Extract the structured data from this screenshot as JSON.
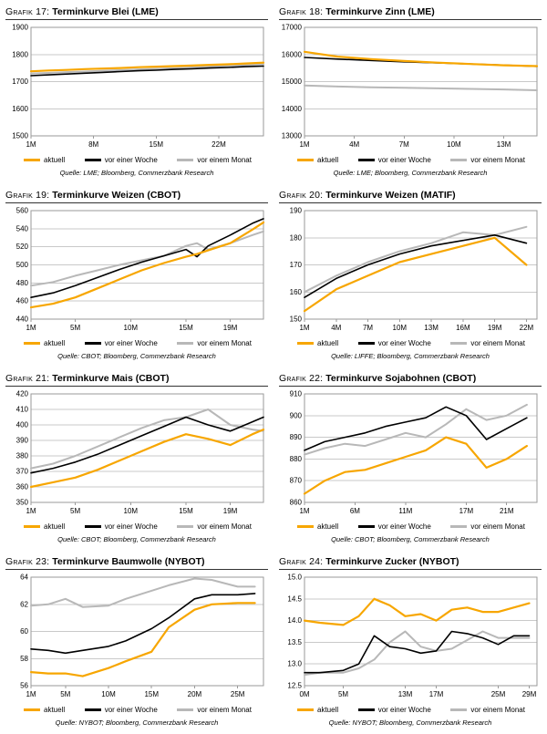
{
  "page": {
    "legend_labels": [
      "aktuell",
      "vor einer Woche",
      "vor einem Monat"
    ],
    "colors": {
      "aktuell": "#f7a600",
      "week": "#000000",
      "month": "#b8b8b8",
      "grid": "#c9c9c9"
    }
  },
  "chart_data": [
    {
      "type": "line",
      "grafik": "Grafik 17:",
      "title": "Terminkurve Blei (LME)",
      "source": "Quelle: LME; Bloomberg, Commerzbank Research",
      "ylim": [
        1500,
        1900
      ],
      "yticks": [
        1500,
        1600,
        1700,
        1800,
        1900
      ],
      "ytick_labels": [
        "1500",
        "1600",
        "1700",
        "1800",
        "1900"
      ],
      "xlim": [
        1,
        27
      ],
      "xticks": [
        1,
        8,
        15,
        22
      ],
      "xtick_labels": [
        "1M",
        "8M",
        "15M",
        "22M"
      ],
      "x": [
        1,
        3,
        5,
        7,
        9,
        11,
        13,
        15,
        17,
        19,
        21,
        23,
        25,
        27
      ],
      "series": [
        {
          "name": "aktuell",
          "color": "#f7a600",
          "values": [
            1738,
            1741,
            1743,
            1746,
            1748,
            1750,
            1753,
            1755,
            1757,
            1759,
            1762,
            1764,
            1767,
            1770
          ]
        },
        {
          "name": "vor einer Woche",
          "color": "#000000",
          "values": [
            1722,
            1725,
            1728,
            1731,
            1734,
            1737,
            1740,
            1742,
            1745,
            1747,
            1750,
            1752,
            1755,
            1757
          ]
        },
        {
          "name": "vor einem Monat",
          "color": "#b8b8b8",
          "values": [
            1730,
            1732,
            1735,
            1737,
            1740,
            1742,
            1745,
            1747,
            1749,
            1752,
            1755,
            1758,
            1761,
            1764
          ]
        }
      ]
    },
    {
      "type": "line",
      "grafik": "Grafik 18:",
      "title": "Terminkurve Zinn (LME)",
      "source": "Quelle: LME; Bloomberg, Commerzbank Research",
      "ylim": [
        13000,
        17000
      ],
      "yticks": [
        13000,
        14000,
        15000,
        16000,
        17000
      ],
      "ytick_labels": [
        "13000",
        "14000",
        "15000",
        "16000",
        "17000"
      ],
      "xlim": [
        1,
        15
      ],
      "xticks": [
        1,
        4,
        7,
        10,
        13
      ],
      "xtick_labels": [
        "1M",
        "4M",
        "7M",
        "10M",
        "13M"
      ],
      "x": [
        1,
        3,
        5,
        7,
        9,
        11,
        13,
        15
      ],
      "series": [
        {
          "name": "aktuell",
          "color": "#f7a600",
          "values": [
            16100,
            15920,
            15830,
            15760,
            15700,
            15650,
            15600,
            15570
          ]
        },
        {
          "name": "vor einer Woche",
          "color": "#000000",
          "values": [
            15890,
            15830,
            15780,
            15730,
            15690,
            15650,
            15610,
            15560
          ]
        },
        {
          "name": "vor einem Monat",
          "color": "#b8b8b8",
          "values": [
            14860,
            14820,
            14790,
            14770,
            14750,
            14730,
            14710,
            14680
          ]
        }
      ]
    },
    {
      "type": "line",
      "grafik": "Grafik 19:",
      "title": "Terminkurve Weizen (CBOT)",
      "source": "Quelle: CBOT; Bloomberg, Commerzbank Research",
      "ylim": [
        440,
        560
      ],
      "yticks": [
        440,
        460,
        480,
        500,
        520,
        540,
        560
      ],
      "ytick_labels": [
        "440",
        "460",
        "480",
        "500",
        "520",
        "540",
        "560"
      ],
      "xlim": [
        1,
        22
      ],
      "xticks": [
        1,
        5,
        10,
        15,
        19
      ],
      "xtick_labels": [
        "1M",
        "5M",
        "10M",
        "15M",
        "19M"
      ],
      "x": [
        1,
        3,
        5,
        7,
        9,
        11,
        13,
        15,
        16,
        17,
        19,
        21,
        22
      ],
      "series": [
        {
          "name": "aktuell",
          "color": "#f7a600",
          "values": [
            453,
            457,
            464,
            474,
            484,
            494,
            502,
            509,
            512,
            516,
            524,
            539,
            547
          ]
        },
        {
          "name": "vor einer Woche",
          "color": "#000000",
          "values": [
            464,
            469,
            477,
            486,
            495,
            503,
            510,
            517,
            509,
            521,
            533,
            546,
            551
          ]
        },
        {
          "name": "vor einem Monat",
          "color": "#b8b8b8",
          "values": [
            477,
            481,
            488,
            494,
            500,
            505,
            510,
            521,
            524,
            517,
            524,
            533,
            537
          ]
        }
      ]
    },
    {
      "type": "line",
      "grafik": "Grafik 20:",
      "title": "Terminkurve Weizen (MATIF)",
      "source": "Quelle: LIFFE; Bloomberg, Commerzbank Research",
      "ylim": [
        150,
        190
      ],
      "yticks": [
        150,
        160,
        170,
        180,
        190
      ],
      "ytick_labels": [
        "150",
        "160",
        "170",
        "180",
        "190"
      ],
      "xlim": [
        1,
        23
      ],
      "xticks": [
        1,
        4,
        7,
        10,
        13,
        16,
        19,
        22
      ],
      "xtick_labels": [
        "1M",
        "4M",
        "7M",
        "10M",
        "13M",
        "16M",
        "19M",
        "22M"
      ],
      "x": [
        1,
        4,
        7,
        10,
        13,
        16,
        19,
        22
      ],
      "series": [
        {
          "name": "aktuell",
          "color": "#f7a600",
          "values": [
            153,
            161,
            166,
            171,
            174,
            177,
            180,
            170
          ]
        },
        {
          "name": "vor einer Woche",
          "color": "#000000",
          "values": [
            158,
            165,
            170,
            174,
            177,
            179,
            181,
            178
          ]
        },
        {
          "name": "vor einem Monat",
          "color": "#b8b8b8",
          "values": [
            160,
            166,
            171,
            175,
            178,
            182,
            181,
            184
          ]
        }
      ]
    },
    {
      "type": "line",
      "grafik": "Grafik 21:",
      "title": "Terminkurve Mais (CBOT)",
      "source": "Quelle: CBOT; Bloomberg, Commerzbank Research",
      "ylim": [
        350,
        420
      ],
      "yticks": [
        350,
        360,
        370,
        380,
        390,
        400,
        410,
        420
      ],
      "ytick_labels": [
        "350",
        "360",
        "370",
        "380",
        "390",
        "400",
        "410",
        "420"
      ],
      "xlim": [
        1,
        22
      ],
      "xticks": [
        1,
        5,
        10,
        15,
        19
      ],
      "xtick_labels": [
        "1M",
        "5M",
        "10M",
        "15M",
        "19M"
      ],
      "x": [
        1,
        3,
        5,
        7,
        9,
        11,
        13,
        15,
        17,
        19,
        21,
        22
      ],
      "series": [
        {
          "name": "aktuell",
          "color": "#f7a600",
          "values": [
            360,
            363,
            366,
            371,
            377,
            383,
            389,
            394,
            391,
            387,
            394,
            397
          ]
        },
        {
          "name": "vor einer Woche",
          "color": "#000000",
          "values": [
            369,
            372,
            376,
            381,
            387,
            393,
            399,
            405,
            400,
            396,
            402,
            405
          ]
        },
        {
          "name": "vor einem Monat",
          "color": "#b8b8b8",
          "values": [
            372,
            375,
            380,
            386,
            392,
            398,
            403,
            405,
            410,
            400,
            397,
            396
          ]
        }
      ]
    },
    {
      "type": "line",
      "grafik": "Grafik 22:",
      "title": "Terminkurve Sojabohnen (CBOT)",
      "source": "Quelle: CBOT; Bloomberg, Commerzbank Research",
      "ylim": [
        860,
        910
      ],
      "yticks": [
        860,
        870,
        880,
        890,
        900,
        910
      ],
      "ytick_labels": [
        "860",
        "870",
        "880",
        "890",
        "900",
        "910"
      ],
      "xlim": [
        1,
        24
      ],
      "xticks": [
        1,
        6,
        11,
        17,
        21
      ],
      "xtick_labels": [
        "1M",
        "6M",
        "11M",
        "17M",
        "21M"
      ],
      "x": [
        1,
        3,
        5,
        7,
        9,
        11,
        13,
        15,
        17,
        19,
        21,
        23
      ],
      "series": [
        {
          "name": "aktuell",
          "color": "#f7a600",
          "values": [
            864,
            870,
            874,
            875,
            878,
            881,
            884,
            890,
            887,
            876,
            880,
            886
          ]
        },
        {
          "name": "vor einer Woche",
          "color": "#000000",
          "values": [
            884,
            888,
            890,
            892,
            895,
            897,
            899,
            904,
            900,
            889,
            894,
            899
          ]
        },
        {
          "name": "vor einem Monat",
          "color": "#b8b8b8",
          "values": [
            882,
            885,
            887,
            886,
            889,
            892,
            890,
            896,
            903,
            898,
            900,
            905
          ]
        }
      ]
    },
    {
      "type": "line",
      "grafik": "Grafik 23:",
      "title": "Terminkurve Baumwolle (NYBOT)",
      "source": "Quelle: NYBOT; Bloomberg, Commerzbank Research",
      "ylim": [
        56,
        64
      ],
      "yticks": [
        56,
        58,
        60,
        62,
        64
      ],
      "ytick_labels": [
        "56",
        "58",
        "60",
        "62",
        "64"
      ],
      "xlim": [
        1,
        28
      ],
      "xticks": [
        1,
        5,
        10,
        15,
        20,
        25
      ],
      "xtick_labels": [
        "1M",
        "5M",
        "10M",
        "15M",
        "20M",
        "25M"
      ],
      "x": [
        1,
        3,
        5,
        7,
        10,
        12,
        15,
        17,
        20,
        22,
        25,
        27
      ],
      "series": [
        {
          "name": "aktuell",
          "color": "#f7a600",
          "values": [
            57.0,
            56.9,
            56.9,
            56.7,
            57.3,
            57.8,
            58.5,
            60.3,
            61.6,
            62.0,
            62.1,
            62.1
          ]
        },
        {
          "name": "vor einer Woche",
          "color": "#000000",
          "values": [
            58.7,
            58.6,
            58.4,
            58.6,
            58.9,
            59.3,
            60.2,
            61.0,
            62.4,
            62.7,
            62.7,
            62.8
          ]
        },
        {
          "name": "vor einem Monat",
          "color": "#b8b8b8",
          "values": [
            61.9,
            62.0,
            62.4,
            61.8,
            61.9,
            62.4,
            63.0,
            63.4,
            63.9,
            63.8,
            63.3,
            63.3
          ]
        }
      ]
    },
    {
      "type": "line",
      "grafik": "Grafik 24:",
      "title": "Terminkurve Zucker (NYBOT)",
      "source": "Quelle: NYBOT; Bloomberg, Commerzbank Research",
      "ylim": [
        12.5,
        15.0
      ],
      "yticks": [
        12.5,
        13.0,
        13.5,
        14.0,
        14.5,
        15.0
      ],
      "ytick_labels": [
        "12.5",
        "13.0",
        "13.5",
        "14.0",
        "14.5",
        "15.0"
      ],
      "xlim": [
        0,
        30
      ],
      "xticks": [
        0,
        5,
        13,
        17,
        25,
        29
      ],
      "xtick_labels": [
        "0M",
        "5M",
        "13M",
        "17M",
        "25M",
        "29M"
      ],
      "x": [
        0,
        2,
        5,
        7,
        9,
        11,
        13,
        15,
        17,
        19,
        21,
        23,
        25,
        27,
        29
      ],
      "series": [
        {
          "name": "aktuell",
          "color": "#f7a600",
          "values": [
            14.0,
            13.95,
            13.9,
            14.1,
            14.5,
            14.35,
            14.1,
            14.15,
            14.0,
            14.25,
            14.3,
            14.2,
            14.2,
            14.3,
            14.4
          ]
        },
        {
          "name": "vor einer Woche",
          "color": "#000000",
          "values": [
            12.8,
            12.8,
            12.85,
            13.0,
            13.65,
            13.4,
            13.35,
            13.25,
            13.3,
            13.75,
            13.7,
            13.6,
            13.45,
            13.65,
            13.65
          ]
        },
        {
          "name": "vor einem Monat",
          "color": "#b8b8b8",
          "values": [
            12.75,
            12.8,
            12.8,
            12.9,
            13.1,
            13.5,
            13.75,
            13.4,
            13.3,
            13.35,
            13.55,
            13.75,
            13.6,
            13.6,
            13.6
          ]
        }
      ]
    }
  ]
}
